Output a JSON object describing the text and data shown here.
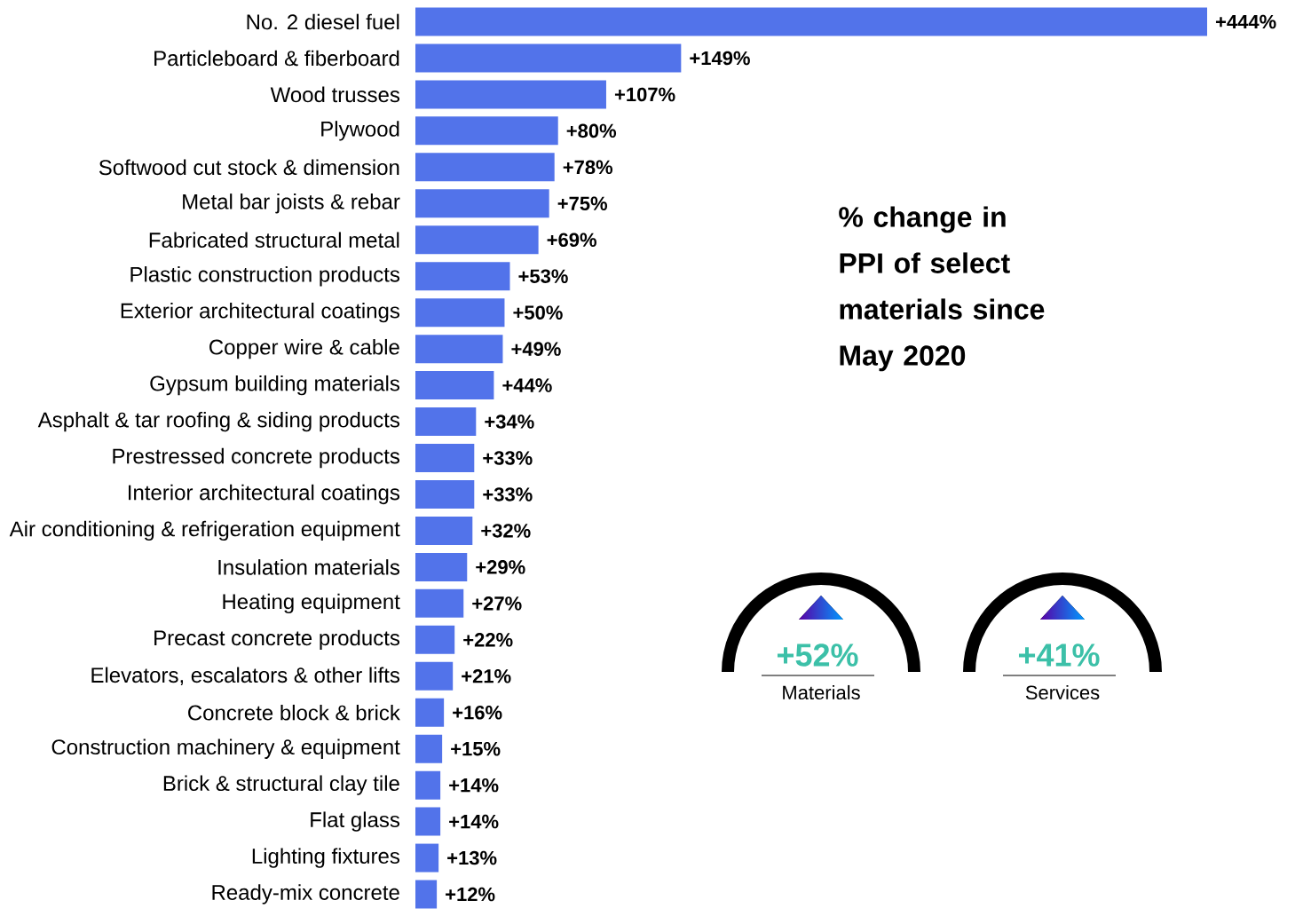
{
  "chart_data": {
    "type": "bar",
    "orientation": "horizontal",
    "title": "% change in PPI of select materials since May 2020",
    "categories": [
      "No. 2 diesel fuel",
      "Particleboard & fiberboard",
      "Wood trusses",
      "Plywood",
      "Softwood cut stock & dimension",
      "Metal bar joists & rebar",
      "Fabricated structural metal",
      "Plastic construction products",
      "Exterior architectural coatings",
      "Copper wire & cable",
      "Gypsum building materials",
      "Asphalt & tar roofing & siding products",
      "Prestressed concrete products",
      "Interior architectural coatings",
      "Air conditioning & refrigeration equipment",
      "Insulation materials",
      "Heating equipment",
      "Precast concrete products",
      "Elevators, escalators & other lifts",
      "Concrete block & brick",
      "Construction machinery & equipment",
      "Brick & structural clay tile",
      "Flat glass",
      "Lighting fixtures",
      "Ready-mix concrete"
    ],
    "values": [
      444,
      149,
      107,
      80,
      78,
      75,
      69,
      53,
      50,
      49,
      44,
      34,
      33,
      33,
      32,
      29,
      27,
      22,
      21,
      16,
      15,
      14,
      14,
      13,
      12
    ],
    "value_labels": [
      "+444%",
      "+149%",
      "+107%",
      "+80%",
      "+78%",
      "+75%",
      "+69%",
      "+53%",
      "+50%",
      "+49%",
      "+44%",
      "+34%",
      "+33%",
      "+33%",
      "+32%",
      "+29%",
      "+27%",
      "+22%",
      "+21%",
      "+16%",
      "+15%",
      "+14%",
      "+14%",
      "+13%",
      "+12%"
    ],
    "color": "#5273ea",
    "annotations": [
      "+52%",
      "Materials",
      "+41%",
      "Services"
    ]
  }
}
